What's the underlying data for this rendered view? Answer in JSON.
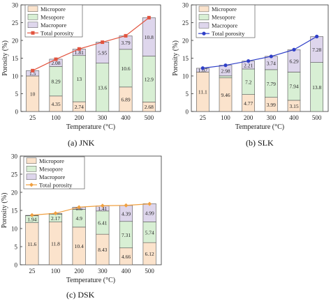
{
  "chart_data": [
    {
      "type": "bar",
      "caption": "(a) JNK",
      "xlabel": "Temperature (°C)",
      "ylabel": "Porosity (%)",
      "ylim": [
        0,
        30
      ],
      "yticks": [
        "0",
        "5",
        "10",
        "15",
        "20",
        "25",
        "30"
      ],
      "categories": [
        "25",
        "100",
        "200",
        "300",
        "400",
        "500"
      ],
      "stacked": true,
      "series": [
        {
          "name": "Micropore",
          "values": [
            10,
            4.35,
            2.74,
            0,
            6.89,
            2.68
          ],
          "labels": [
            "10",
            "4.35",
            "2.74",
            "",
            "6.89",
            "2.68"
          ],
          "color": "#fbe3cc"
        },
        {
          "name": "Mesopore",
          "values": [
            0,
            8.29,
            13,
            13.6,
            10.6,
            12.9
          ],
          "labels": [
            "",
            "8.29",
            "13",
            "13.6",
            "10.6",
            "12.9"
          ],
          "color": "#d8efd4"
        },
        {
          "name": "Macropore",
          "values": [
            1.5,
            2.08,
            1.81,
            5.95,
            3.79,
            10.8
          ],
          "labels": [
            "1.5",
            "2.08",
            "1.81",
            "5.95",
            "3.79",
            "10.8"
          ],
          "color": "#ded6ec"
        }
      ],
      "line": {
        "name": "Total porosity",
        "values": [
          11.5,
          14.7,
          17.6,
          19.5,
          21.3,
          26.4
        ],
        "color": "#e2543f",
        "marker": "square"
      },
      "legend": "top-left"
    },
    {
      "type": "bar",
      "caption": "(b) SLK",
      "xlabel": "Temperature (°C)",
      "ylabel": "Porosity (%)",
      "ylim": [
        0,
        30
      ],
      "yticks": [
        "0",
        "5",
        "10",
        "15",
        "20",
        "25",
        "30"
      ],
      "categories": [
        "25",
        "100",
        "200",
        "300",
        "400",
        "500"
      ],
      "stacked": true,
      "series": [
        {
          "name": "Micropore",
          "values": [
            11.1,
            9.46,
            4.77,
            3.99,
            3.15,
            0
          ],
          "labels": [
            "11.1",
            "9.46",
            "4.77",
            "3.99",
            "3.15",
            ""
          ],
          "color": "#fbe3cc"
        },
        {
          "name": "Mesopore",
          "values": [
            0,
            0.56,
            7.2,
            7.79,
            7.94,
            13.8
          ],
          "labels": [
            "",
            "",
            "7.2",
            "7.79",
            "7.94",
            "13.8"
          ],
          "color": "#d8efd4"
        },
        {
          "name": "Macropore",
          "values": [
            1.07,
            2.98,
            2.21,
            3.74,
            6.29,
            7.28
          ],
          "labels": [
            "1.07",
            "2.98",
            "2.21",
            "3.74",
            "6.29",
            "7.28"
          ],
          "color": "#ded6ec"
        }
      ],
      "line": {
        "name": "Total porosity",
        "values": [
          12.2,
          13,
          14.2,
          15.5,
          17.4,
          21.1
        ],
        "color": "#2f3fc8",
        "marker": "circle"
      },
      "legend": "top-left"
    },
    {
      "type": "bar",
      "caption": "(c) DSK",
      "xlabel": "Temperature (°C)",
      "ylabel": "Porosity (%)",
      "ylim": [
        0,
        30
      ],
      "yticks": [
        "0",
        "5",
        "10",
        "15",
        "20",
        "25",
        "30"
      ],
      "categories": [
        "25",
        "100",
        "200",
        "300",
        "400",
        "500"
      ],
      "stacked": true,
      "series": [
        {
          "name": "Micropore",
          "values": [
            11.6,
            11.8,
            10.4,
            8.43,
            4.66,
            6.12
          ],
          "labels": [
            "11.6",
            "11.8",
            "10.4",
            "8.43",
            "4.66",
            "6.12"
          ],
          "color": "#fbe3cc"
        },
        {
          "name": "Mesopore",
          "values": [
            1.94,
            2.17,
            4.9,
            6.41,
            7.31,
            5.74
          ],
          "labels": [
            "1.94",
            "2.17",
            "4.9",
            "6.41",
            "7.31",
            "5.74"
          ],
          "color": "#d8efd4"
        },
        {
          "name": "Macropore",
          "values": [
            0.1,
            0.2,
            0.6,
            1.41,
            4.39,
            4.99
          ],
          "labels": [
            "",
            "",
            "0.6",
            "1.41",
            "4.39",
            "4.99"
          ],
          "color": "#ded6ec"
        }
      ],
      "line": {
        "name": "Total porosity",
        "values": [
          13.7,
          14.2,
          15.9,
          16.3,
          16.4,
          16.8
        ],
        "color": "#f0a040",
        "marker": "diamond"
      },
      "legend": "top-left"
    }
  ]
}
